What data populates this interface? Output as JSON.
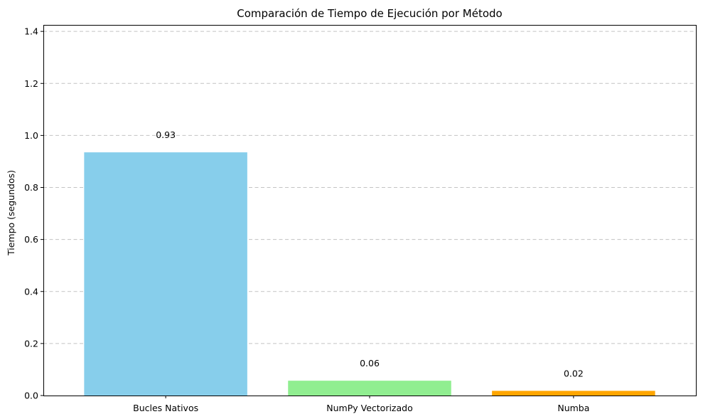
{
  "chart_data": {
    "type": "bar",
    "title": "Comparación de Tiempo de Ejecución por Método",
    "xlabel": "",
    "ylabel": "Tiempo (segundos)",
    "categories": [
      "Bucles Nativos",
      "NumPy Vectorizado",
      "Numba"
    ],
    "values": [
      0.935,
      0.057,
      0.018
    ],
    "value_labels": [
      "0.93",
      "0.06",
      "0.02"
    ],
    "colors": [
      "#87CEEB",
      "#90EE90",
      "#FFA500"
    ],
    "ylim": [
      0,
      1.4
    ],
    "yticks": [
      0.0,
      0.2,
      0.4,
      0.6,
      0.8,
      1.0,
      1.2,
      1.4
    ],
    "ytick_labels": [
      "0.0",
      "0.2",
      "0.4",
      "0.6",
      "0.8",
      "1.0",
      "1.2",
      "1.4"
    ],
    "grid": "y-dashed",
    "legend": "none"
  }
}
